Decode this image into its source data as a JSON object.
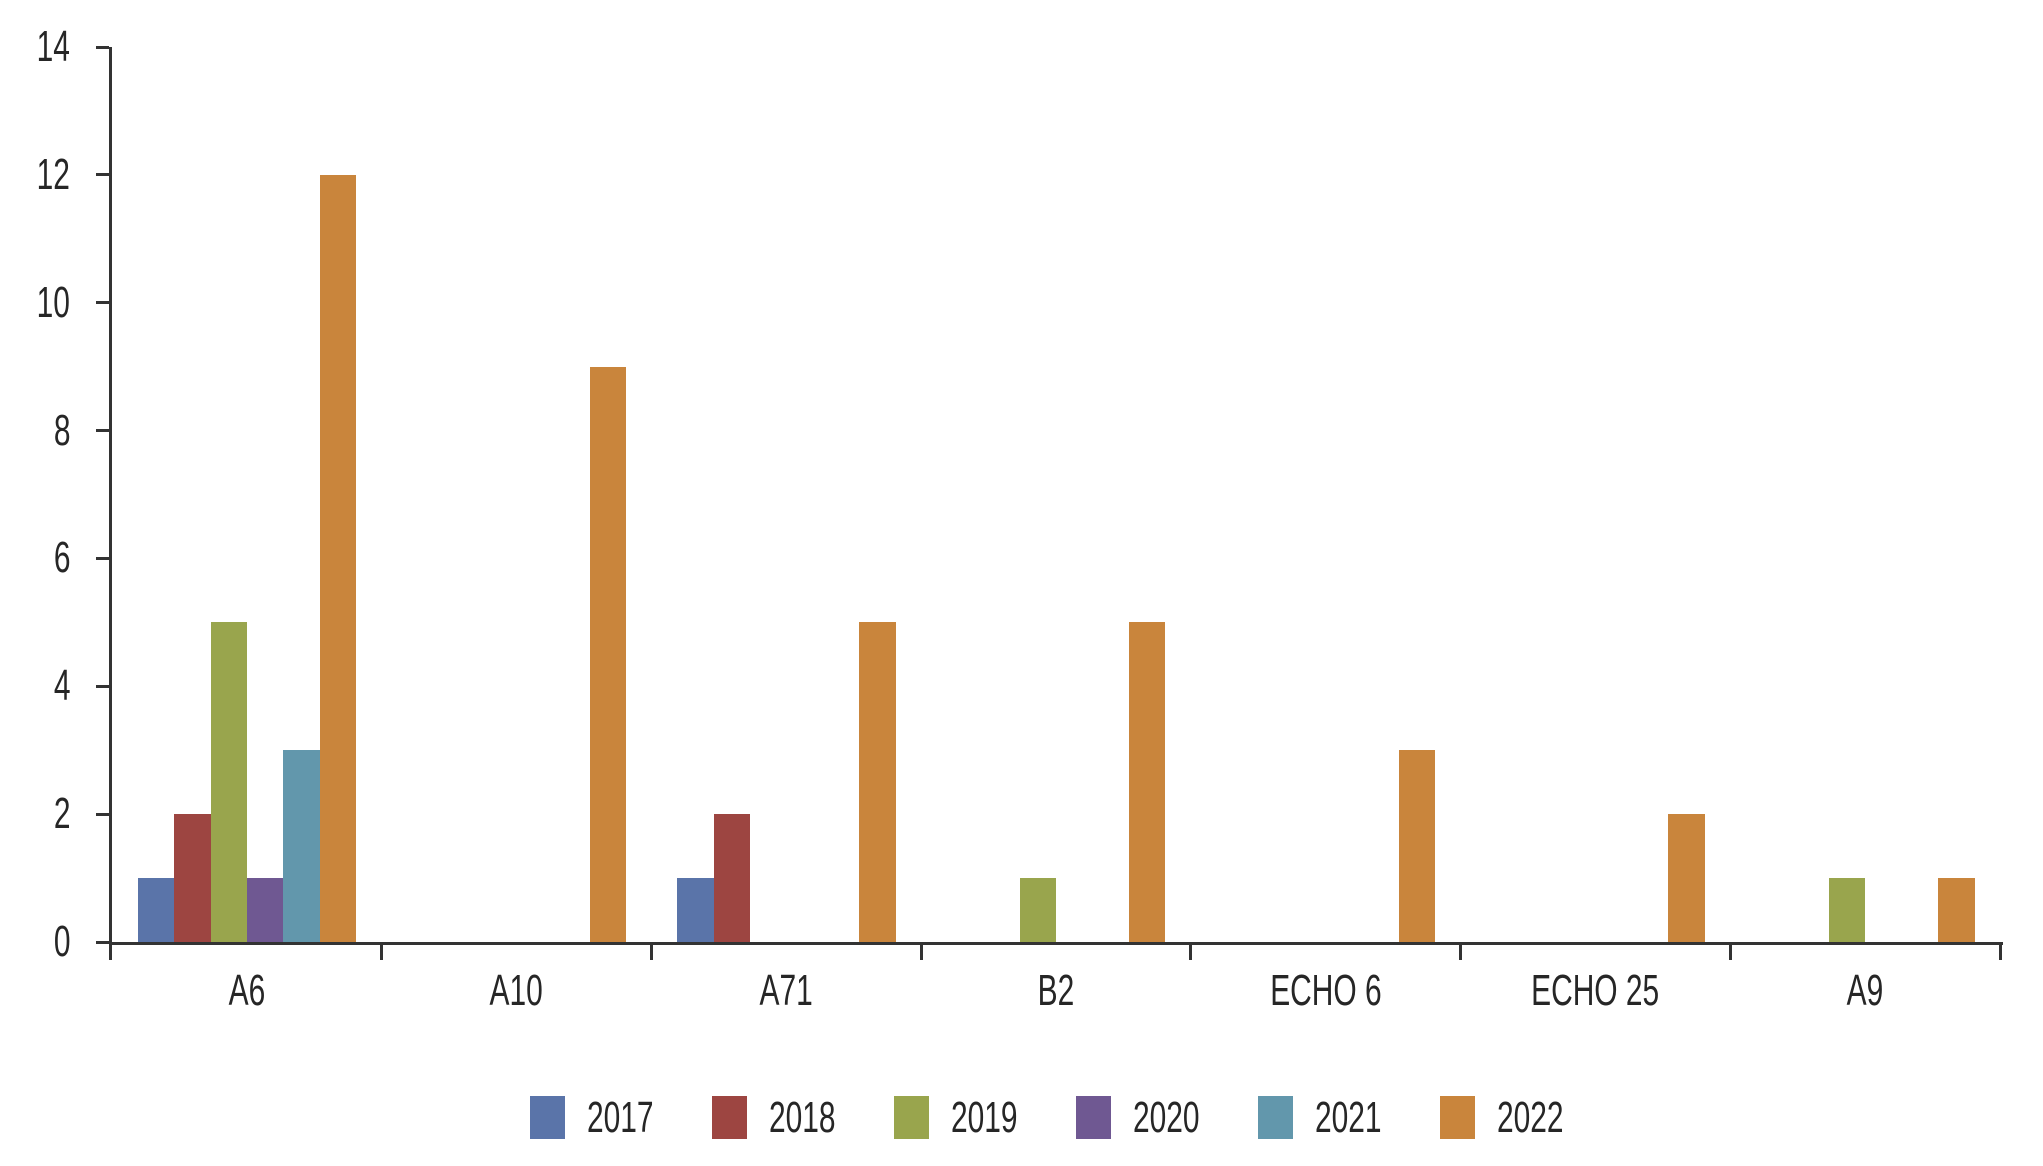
{
  "chart_data": {
    "type": "bar",
    "title": "",
    "xlabel": "",
    "ylabel": "",
    "categories": [
      "A6",
      "A10",
      "A71",
      "B2",
      "ECHO 6",
      "ECHO 25",
      "A9"
    ],
    "series": [
      {
        "name": "2017",
        "color": "#5A74A9",
        "values": [
          1,
          0,
          1,
          0,
          0,
          0,
          0
        ]
      },
      {
        "name": "2018",
        "color": "#9D4541",
        "values": [
          2,
          0,
          2,
          0,
          0,
          0,
          0
        ]
      },
      {
        "name": "2019",
        "color": "#99A54D",
        "values": [
          5,
          0,
          0,
          1,
          0,
          0,
          1
        ]
      },
      {
        "name": "2020",
        "color": "#6F5892",
        "values": [
          1,
          0,
          0,
          0,
          0,
          0,
          0
        ]
      },
      {
        "name": "2021",
        "color": "#6297AC",
        "values": [
          3,
          0,
          0,
          0,
          0,
          0,
          0
        ]
      },
      {
        "name": "2022",
        "color": "#C9853C",
        "values": [
          12,
          9,
          5,
          5,
          3,
          2,
          1
        ]
      }
    ],
    "ylim": [
      0,
      14
    ],
    "yticks": [
      "0",
      "2",
      "4",
      "6",
      "8",
      "10",
      "12",
      "14"
    ],
    "grid": false,
    "legend_position": "bottom",
    "legend_labels": [
      "2017",
      "2018",
      "2019",
      "2020",
      "2021",
      "2022"
    ],
    "axis_color": "#333333",
    "text_color": "#262626",
    "background_color": "#FFFFFF"
  }
}
